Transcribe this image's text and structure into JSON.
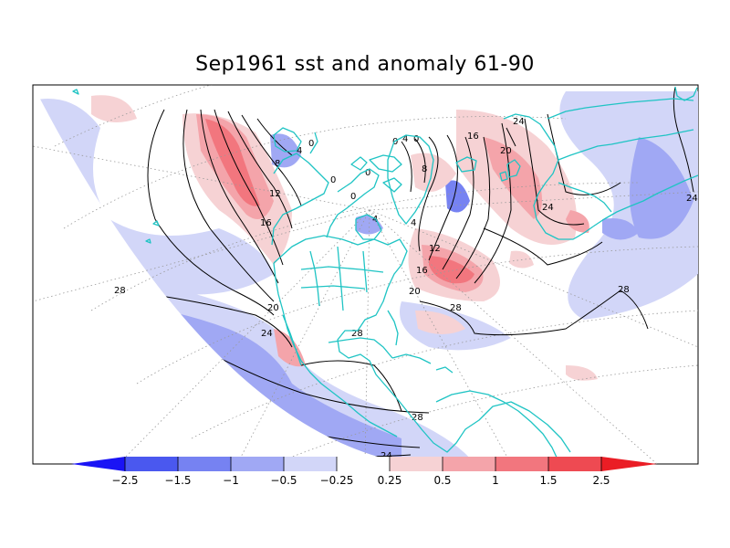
{
  "title": "Sep1961 sst and anomaly 61-90",
  "colorbar": {
    "colors": [
      "#1a14f5",
      "#4a58ef",
      "#7682f2",
      "#a0a8f4",
      "#d2d6f8",
      "#ffffff",
      "#f6d2d4",
      "#f4a4aa",
      "#f2767e",
      "#ee4a52",
      "#ea1d25"
    ],
    "labels": [
      "-2.5",
      "-1.5",
      "-1",
      "-0.5",
      "-0.25",
      "0.25",
      "0.5",
      "1",
      "1.5",
      "2.5"
    ]
  },
  "chart_data": {
    "type": "heatmap",
    "title": "Sep1961 sst and anomaly 61-90",
    "variable": "sst",
    "anomaly_levels": [
      -2.5,
      -1.5,
      -1,
      -0.5,
      -0.25,
      0.25,
      0.5,
      1,
      1.5,
      2.5
    ],
    "contour_labels": [
      "0",
      "4",
      "8",
      "12",
      "16",
      "20",
      "24",
      "28"
    ]
  }
}
